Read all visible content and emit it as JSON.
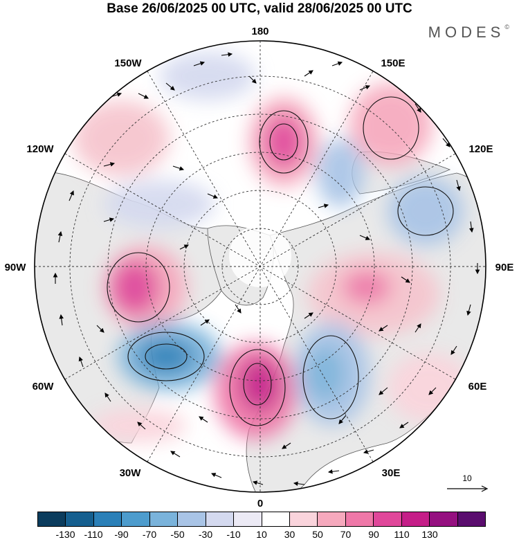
{
  "title": "Base 26/06/2025 00 UTC, valid 28/06/2025 00 UTC",
  "brand": "MODES",
  "brand_mark": "©",
  "longitude_labels": {
    "top": "180",
    "bottom": "0",
    "left": "90W",
    "right": "90E",
    "upper_left_1": "150W",
    "upper_left_2": "120W",
    "lower_left_1": "60W",
    "lower_left_2": "30W",
    "upper_right_1": "150E",
    "upper_right_2": "120E",
    "lower_right_1": "60E",
    "lower_right_2": "30E"
  },
  "reference_vector": {
    "label": "10"
  },
  "colorbar": {
    "colors": [
      "#0b3c5d",
      "#155f8f",
      "#2b80b8",
      "#4d9ccd",
      "#7ab3db",
      "#a9c4e6",
      "#d4d9ef",
      "#eceaf5",
      "#ffffff",
      "#fad4dc",
      "#f6a9bd",
      "#ef78a8",
      "#e0479a",
      "#c51e88",
      "#951080",
      "#5a0d6e"
    ],
    "tick_labels": [
      "-130",
      "-110",
      "-90",
      "-70",
      "-50",
      "-30",
      "-10",
      "10",
      "30",
      "50",
      "70",
      "90",
      "110",
      "130"
    ]
  },
  "map_colors": {
    "land": "#e9e9e9",
    "coast": "#555555",
    "grid": "#333333"
  }
}
